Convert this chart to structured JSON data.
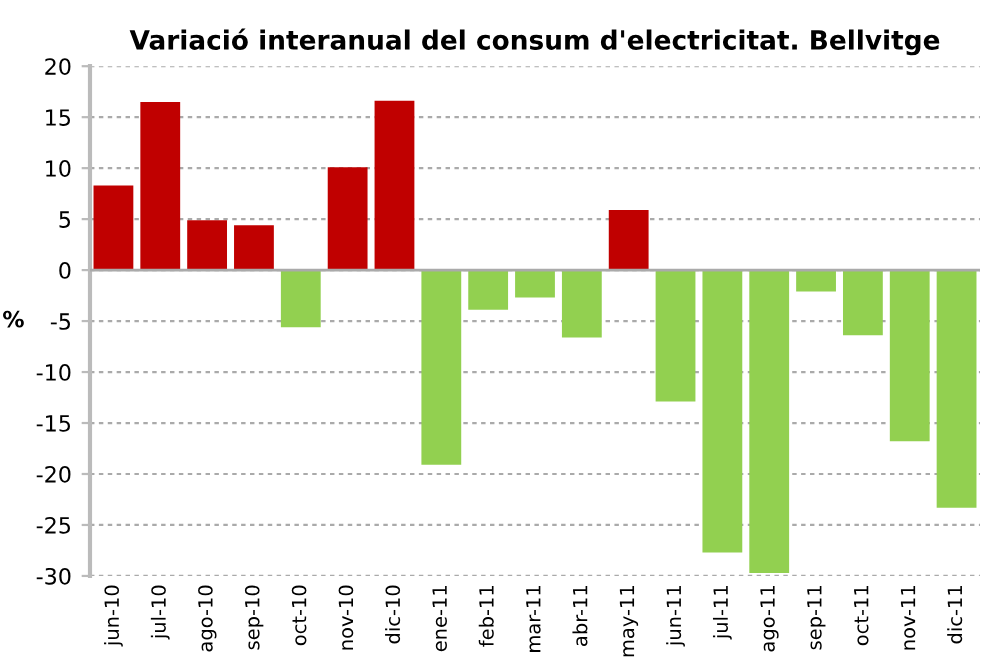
{
  "chart_data": {
    "type": "bar",
    "title": "Variació interanual del consum d'electricitat. Bellvitge",
    "ylabel": "%",
    "categories": [
      "jun-10",
      "jul-10",
      "ago-10",
      "sep-10",
      "oct-10",
      "nov-10",
      "dic-10",
      "ene-11",
      "feb-11",
      "mar-11",
      "abr-11",
      "may-11",
      "jun-11",
      "jul-11",
      "ago-11",
      "sep-11",
      "oct-11",
      "nov-11",
      "dic-11"
    ],
    "values": [
      8.3,
      16.5,
      4.9,
      4.4,
      -5.6,
      10.1,
      16.6,
      -19.1,
      -3.9,
      -2.7,
      -6.6,
      5.9,
      -12.9,
      -27.7,
      -29.7,
      -2.1,
      -6.4,
      -16.8,
      -23.3
    ],
    "colors": [
      "#c00000",
      "#c00000",
      "#c00000",
      "#c00000",
      "#92d050",
      "#c00000",
      "#c00000",
      "#92d050",
      "#92d050",
      "#92d050",
      "#92d050",
      "#c00000",
      "#92d050",
      "#92d050",
      "#92d050",
      "#92d050",
      "#92d050",
      "#92d050",
      "#92d050"
    ],
    "ylim": [
      -30,
      20
    ],
    "yticks": [
      -30,
      -25,
      -20,
      -15,
      -10,
      -5,
      0,
      5,
      10,
      15,
      20
    ],
    "grid": "y",
    "legend": false
  }
}
